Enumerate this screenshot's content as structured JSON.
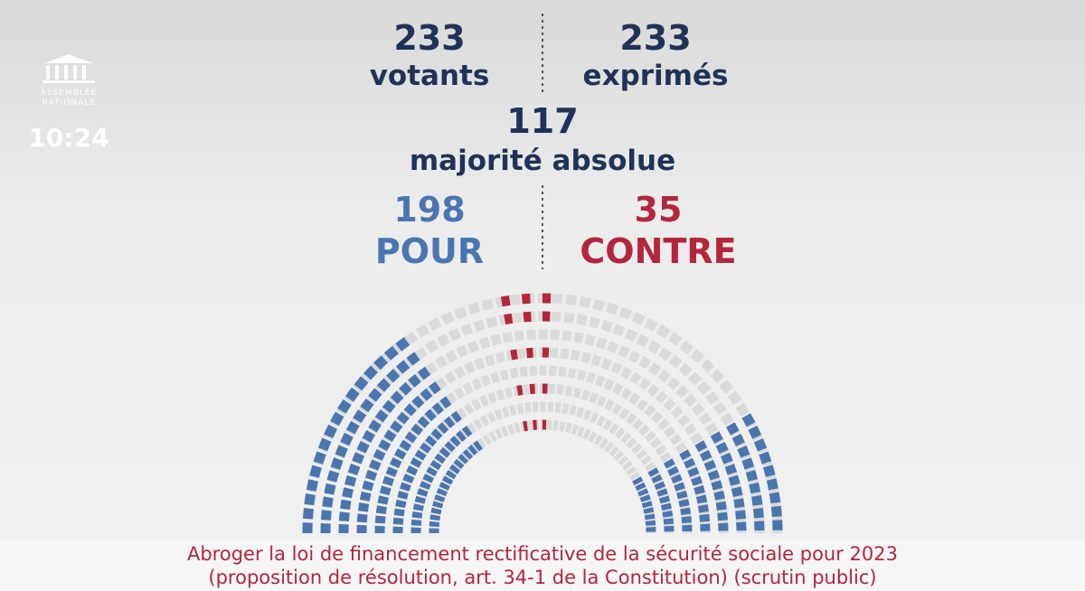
{
  "logo": {
    "line1": "ASSEMBLÉE",
    "line2": "NATIONALE"
  },
  "clock": "10:24",
  "votants": {
    "value": "233",
    "label": "votants"
  },
  "exprimes": {
    "value": "233",
    "label": "exprimés"
  },
  "majorite": {
    "value": "117",
    "label": "majorité absolue"
  },
  "pour": {
    "value": "198",
    "label": "POUR"
  },
  "contre": {
    "value": "35",
    "label": "CONTRE"
  },
  "footer": {
    "line1": "Abroger la loi de financement rectificative de la sécurité sociale pour 2023",
    "line2": "(proposition de résolution, art. 34-1 de la Constitution) (scrutin public)"
  }
}
